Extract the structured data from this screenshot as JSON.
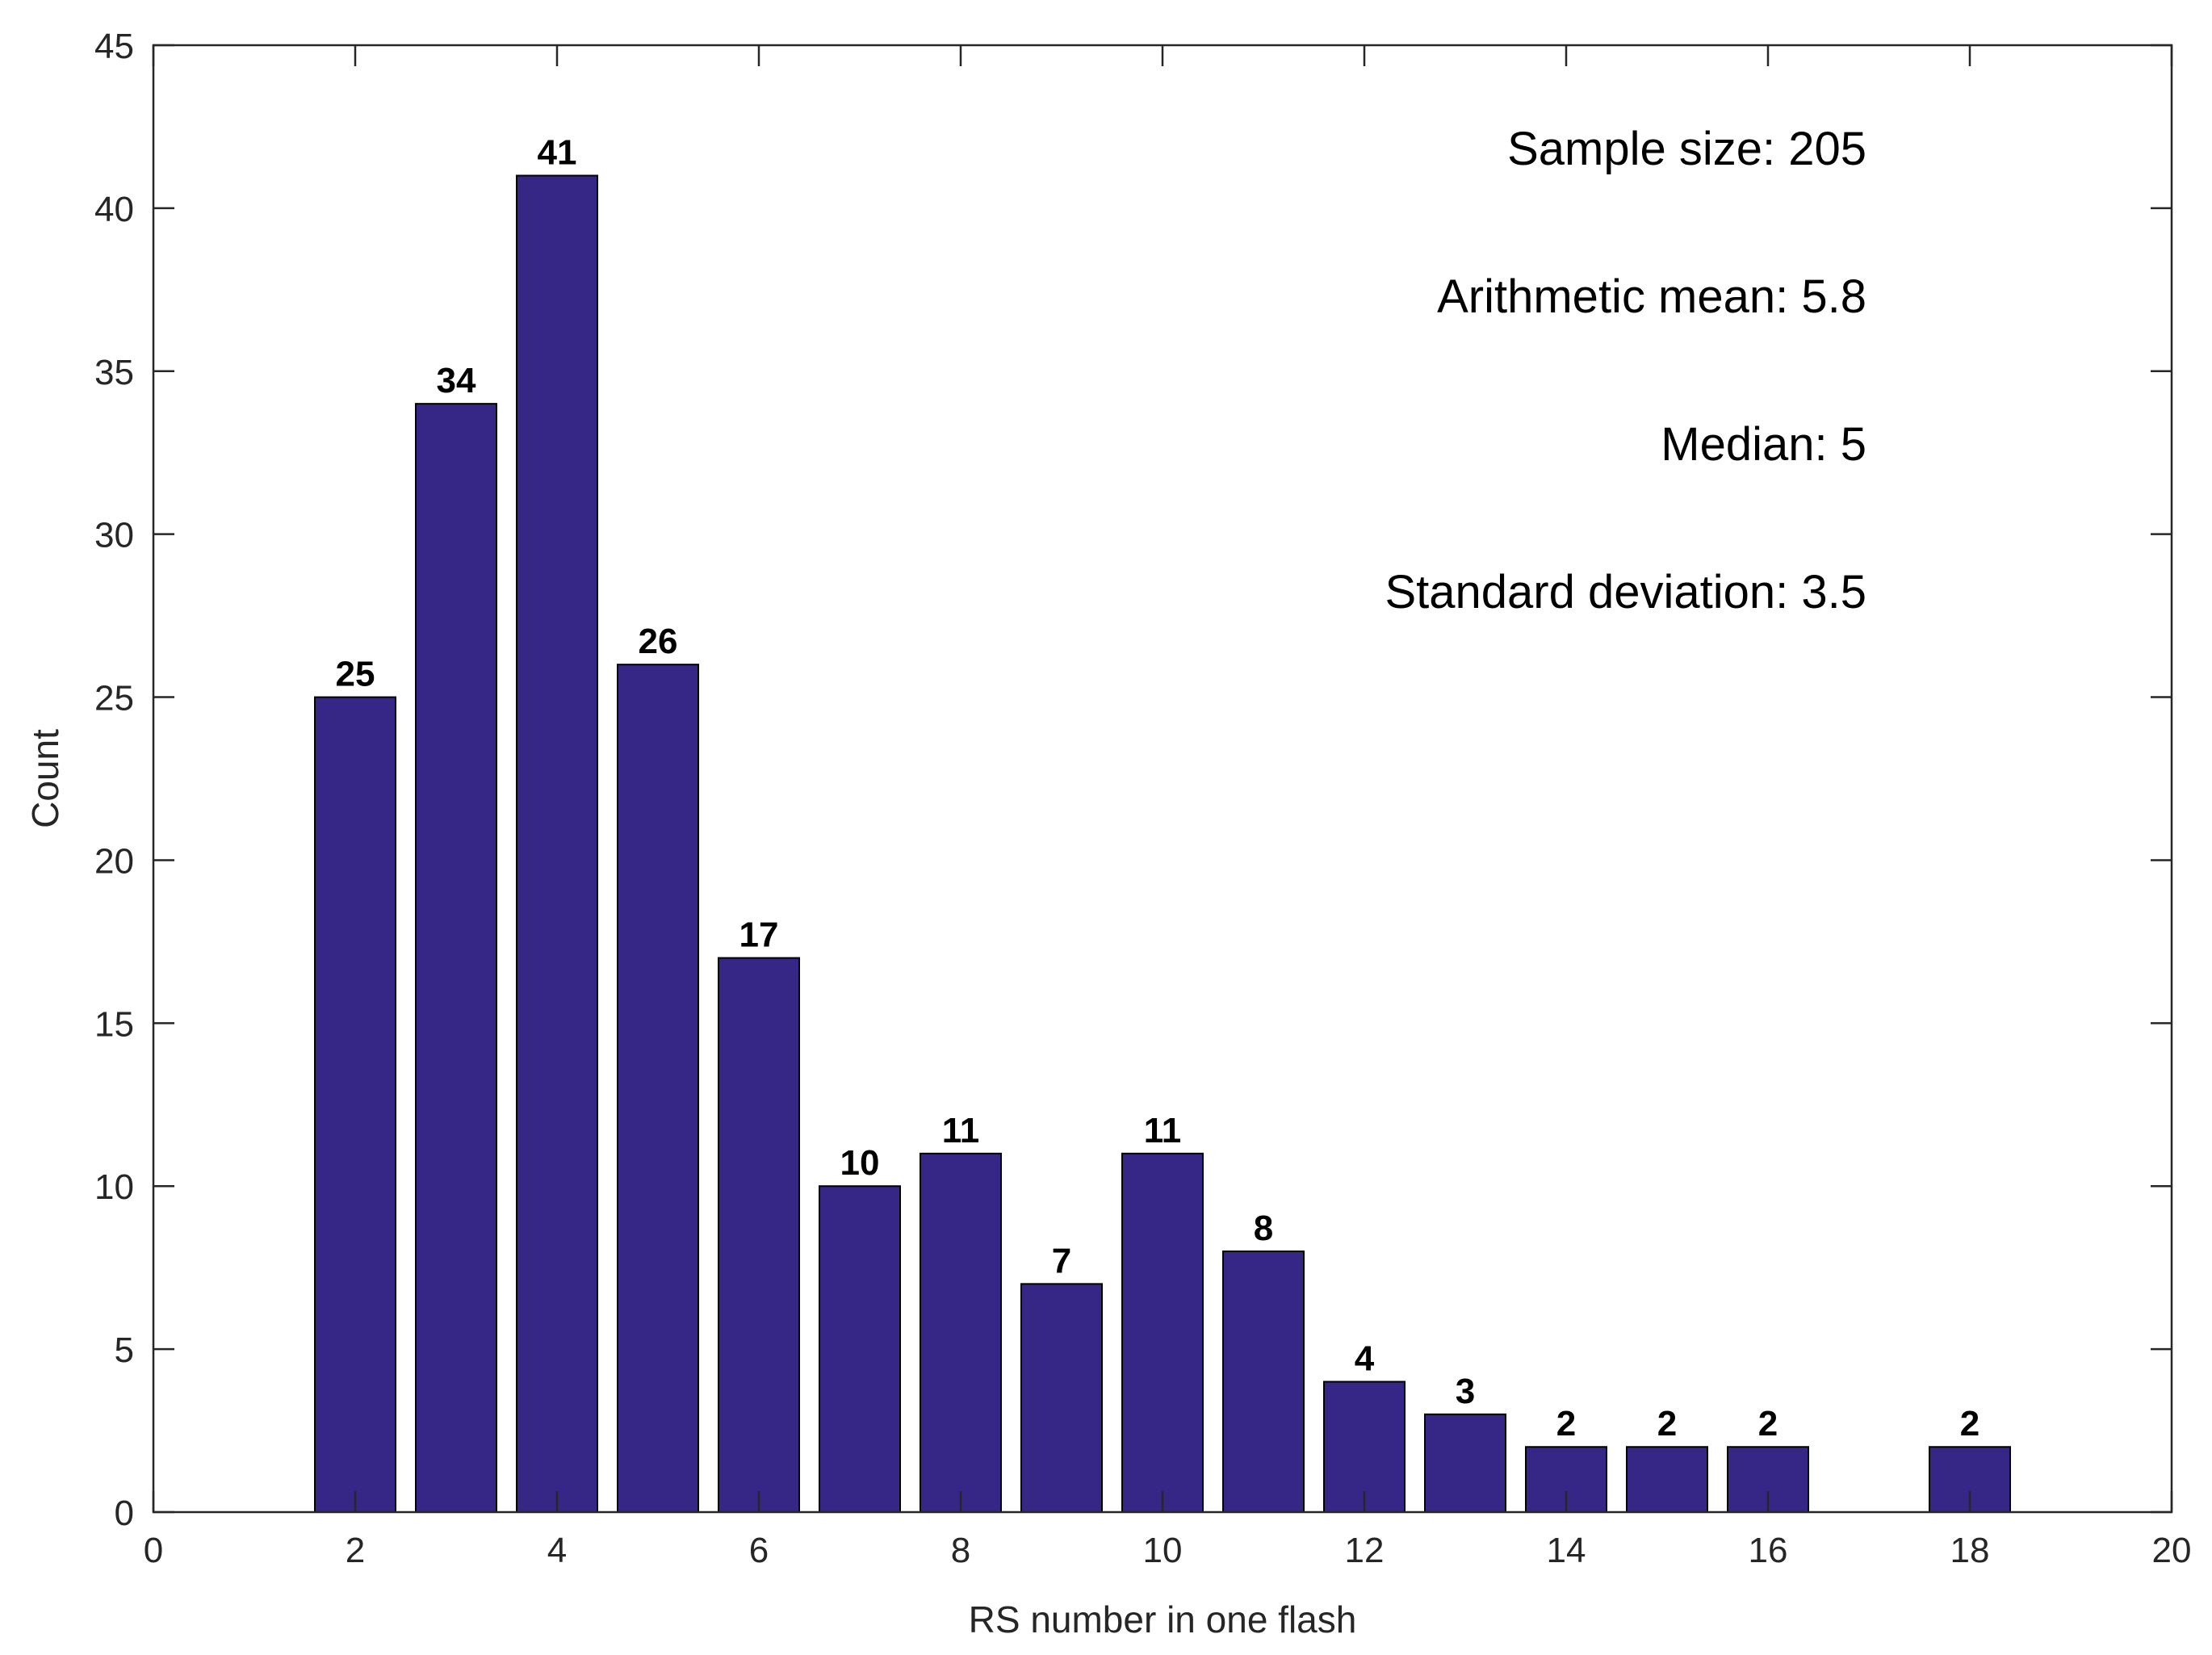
{
  "chart_data": {
    "type": "bar",
    "title": "",
    "xlabel": "RS number in one flash",
    "ylabel": "Count",
    "xlim": [
      0,
      20
    ],
    "ylim": [
      0,
      45
    ],
    "xticks": [
      0,
      2,
      4,
      6,
      8,
      10,
      12,
      14,
      16,
      18,
      20
    ],
    "yticks": [
      0,
      5,
      10,
      15,
      20,
      25,
      30,
      35,
      40,
      45
    ],
    "grid": false,
    "bar_color": "#362786",
    "bars": [
      {
        "x": 2,
        "value": 25
      },
      {
        "x": 3,
        "value": 34
      },
      {
        "x": 4,
        "value": 41
      },
      {
        "x": 5,
        "value": 26
      },
      {
        "x": 6,
        "value": 17
      },
      {
        "x": 7,
        "value": 10
      },
      {
        "x": 8,
        "value": 11
      },
      {
        "x": 9,
        "value": 7
      },
      {
        "x": 10,
        "value": 11
      },
      {
        "x": 11,
        "value": 8
      },
      {
        "x": 12,
        "value": 4
      },
      {
        "x": 13,
        "value": 3
      },
      {
        "x": 14,
        "value": 2
      },
      {
        "x": 15,
        "value": 2
      },
      {
        "x": 16,
        "value": 2
      },
      {
        "x": 18,
        "value": 2
      }
    ],
    "annotations": [
      "Sample size: 205",
      "Arithmetic mean: 5.8",
      "Median: 5",
      "Standard deviation: 3.5"
    ]
  }
}
